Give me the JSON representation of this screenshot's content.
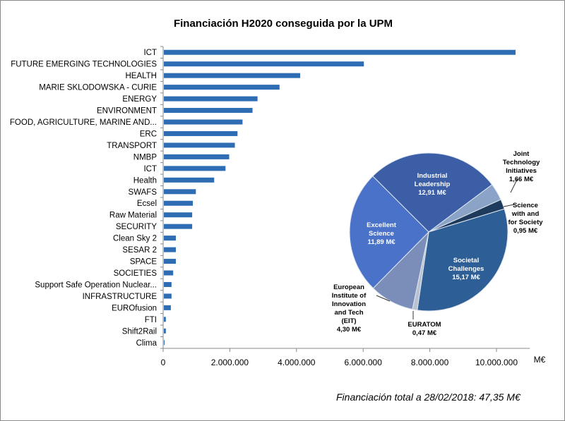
{
  "chart_data": [
    {
      "type": "bar",
      "orientation": "horizontal",
      "title": "Financiación  H2020 conseguida por la UPM",
      "xlabel": "M€",
      "xlim": [
        0,
        11000000
      ],
      "xticks": [
        0,
        2000000,
        4000000,
        6000000,
        8000000,
        10000000
      ],
      "xtick_labels": [
        "0",
        "2.000.000",
        "4.000.000",
        "6.000.000",
        "8.000.000",
        "10.000.000"
      ],
      "grid": false,
      "color": "#2e6db4",
      "categories": [
        "ICT",
        "FUTURE EMERGING TECHNOLOGIES",
        "HEALTH",
        "MARIE SKLODOWSKA - CURIE",
        "ENERGY",
        "ENVIRONMENT",
        "FOOD, AGRICULTURE, MARINE AND...",
        "ERC",
        "TRANSPORT",
        "NMBP",
        "ICT",
        "Health",
        "SWAFS",
        "Ecsel",
        "Raw Material",
        "SECURITY",
        "Clean Sky 2",
        "SESAR 2",
        "SPACE",
        "SOCIETIES",
        "Support Safe Operation Nuclear...",
        "INFRASTRUCTURE",
        "EUROfusion",
        "FTI",
        "Shift2Rail",
        "Clima"
      ],
      "values": [
        10550000,
        6000000,
        4090000,
        3470000,
        2810000,
        2660000,
        2360000,
        2210000,
        2130000,
        1960000,
        1850000,
        1510000,
        960000,
        870000,
        850000,
        850000,
        360000,
        360000,
        360000,
        280000,
        230000,
        230000,
        210000,
        60000,
        60000,
        20000
      ]
    },
    {
      "type": "pie",
      "slices": [
        {
          "name": "Industrial Leadership",
          "label_lines": [
            "Industrial",
            "Leadership",
            "12,91 M€"
          ],
          "value": 12.91,
          "color": "#3b5ea6"
        },
        {
          "name": "Joint Technology Initiatives",
          "label_lines": [
            "Joint",
            "Technology",
            "Initiatives",
            "1,66 M€"
          ],
          "value": 1.66,
          "color": "#8aa3c6"
        },
        {
          "name": "Science with and for Society",
          "label_lines": [
            "Science",
            "with and",
            "for Society",
            "0,95 M€"
          ],
          "value": 0.95,
          "color": "#1e3a5c"
        },
        {
          "name": "Societal Challenges",
          "label_lines": [
            "Societal",
            "Challenges",
            "15,17 M€"
          ],
          "value": 15.17,
          "color": "#2d5e96"
        },
        {
          "name": "EURATOM",
          "label_lines": [
            "EURATOM",
            "0,47 M€"
          ],
          "value": 0.47,
          "color": "#b8c2d2"
        },
        {
          "name": "European Institute of Innovation and Tech (EIT)",
          "label_lines": [
            "European",
            "Institute of",
            "Innovation",
            "and Tech",
            "(EIT)",
            "4,30 M€"
          ],
          "value": 4.3,
          "color": "#7a8eb9"
        },
        {
          "name": "Excellent Science",
          "label_lines": [
            "Excellent",
            "Science",
            "11,89 M€"
          ],
          "value": 11.89,
          "color": "#4a72c9"
        }
      ]
    }
  ],
  "footer": "Financiación total a 28/02/2018:  47,35 M€"
}
